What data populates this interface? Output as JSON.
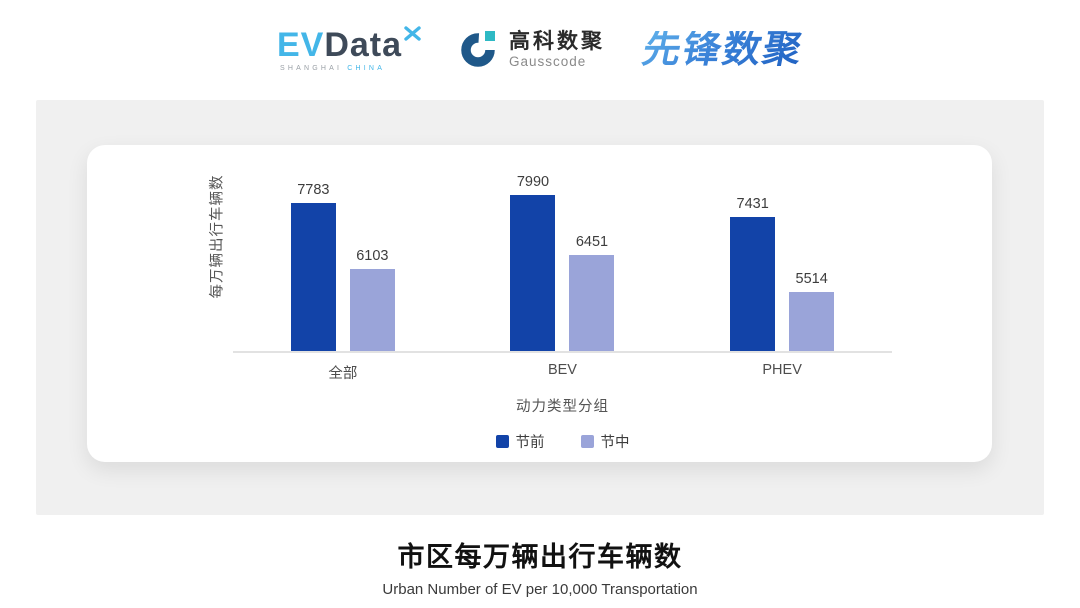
{
  "header": {
    "evdata_logo": {
      "ev": "EV",
      "data": "Data",
      "sub_shanghai": "SHANGHAI",
      "sub_china": "CHINA",
      "brand_blue": "#43B6E8",
      "brand_dark": "#3E4A59"
    },
    "gausscode_logo": {
      "cn": "高科数聚",
      "en": "Gausscode",
      "icon_blue": "#1F5889",
      "icon_teal": "#2EB9C4"
    },
    "xianfeng_logo": {
      "text": "先锋数聚",
      "gradient_start": "#5FB0EA",
      "gradient_end": "#2061C2"
    }
  },
  "chart_data": {
    "type": "bar",
    "categories": [
      "全部",
      "BEV",
      "PHEV"
    ],
    "series": [
      {
        "name": "节前",
        "color": "#1243A8",
        "values": [
          7783,
          7990,
          7431
        ]
      },
      {
        "name": "节中",
        "color": "#9AA4D9",
        "values": [
          6103,
          6451,
          5514
        ]
      }
    ],
    "xlabel": "动力类型分组",
    "ylabel": "每万辆出行车辆数",
    "value_labels": true,
    "ylim_estimate": [
      4000,
      8500
    ],
    "grid": false,
    "legend_position": "bottom",
    "axis_line_color": "#E2E2E2"
  },
  "footer": {
    "title": "市区每万辆出行车辆数",
    "subtitle": "Urban Number of EV per 10,000 Transportation"
  },
  "colors": {
    "panel_bg": "#F0F0F0",
    "card_bg": "#FFFFFF"
  }
}
